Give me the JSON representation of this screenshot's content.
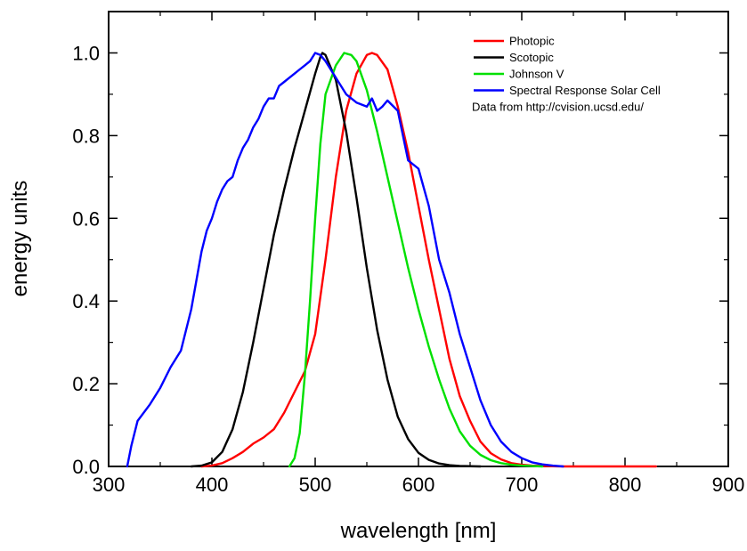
{
  "chart_data": {
    "type": "line",
    "xlabel": "wavelength [nm]",
    "ylabel": "energy units",
    "xlim": [
      300,
      900
    ],
    "ylim": [
      0.0,
      1.1
    ],
    "xticks": [
      "300",
      "400",
      "500",
      "600",
      "700",
      "800",
      "900"
    ],
    "yticks": [
      "0.0",
      "0.2",
      "0.4",
      "0.6",
      "0.8",
      "1.0"
    ],
    "grid": false,
    "legend_position": "top-right",
    "legend_note": "Data from http://cvision.ucsd.edu/",
    "series": [
      {
        "name": "Photopic",
        "color": "#ff0000",
        "points": [
          [
            390,
            0
          ],
          [
            400,
            0.002
          ],
          [
            410,
            0.008
          ],
          [
            420,
            0.02
          ],
          [
            430,
            0.035
          ],
          [
            440,
            0.055
          ],
          [
            450,
            0.07
          ],
          [
            460,
            0.09
          ],
          [
            470,
            0.13
          ],
          [
            480,
            0.18
          ],
          [
            490,
            0.23
          ],
          [
            500,
            0.32
          ],
          [
            510,
            0.5
          ],
          [
            520,
            0.7
          ],
          [
            530,
            0.86
          ],
          [
            540,
            0.95
          ],
          [
            550,
            0.995
          ],
          [
            555,
            1.0
          ],
          [
            560,
            0.995
          ],
          [
            570,
            0.96
          ],
          [
            580,
            0.87
          ],
          [
            590,
            0.76
          ],
          [
            600,
            0.63
          ],
          [
            610,
            0.5
          ],
          [
            620,
            0.38
          ],
          [
            630,
            0.26
          ],
          [
            640,
            0.17
          ],
          [
            650,
            0.11
          ],
          [
            660,
            0.06
          ],
          [
            670,
            0.032
          ],
          [
            680,
            0.017
          ],
          [
            690,
            0.008
          ],
          [
            700,
            0.004
          ],
          [
            710,
            0.002
          ],
          [
            720,
            0.001
          ],
          [
            740,
            0
          ],
          [
            830,
            0
          ]
        ]
      },
      {
        "name": "Scotopic",
        "color": "#000000",
        "points": [
          [
            380,
            0
          ],
          [
            390,
            0.002
          ],
          [
            400,
            0.01
          ],
          [
            410,
            0.035
          ],
          [
            420,
            0.09
          ],
          [
            430,
            0.18
          ],
          [
            440,
            0.3
          ],
          [
            450,
            0.43
          ],
          [
            460,
            0.56
          ],
          [
            470,
            0.67
          ],
          [
            480,
            0.77
          ],
          [
            490,
            0.86
          ],
          [
            500,
            0.95
          ],
          [
            505,
            0.99
          ],
          [
            507,
            1.0
          ],
          [
            510,
            0.995
          ],
          [
            520,
            0.935
          ],
          [
            530,
            0.81
          ],
          [
            540,
            0.65
          ],
          [
            550,
            0.48
          ],
          [
            560,
            0.33
          ],
          [
            570,
            0.21
          ],
          [
            580,
            0.12
          ],
          [
            590,
            0.066
          ],
          [
            600,
            0.033
          ],
          [
            610,
            0.016
          ],
          [
            620,
            0.007
          ],
          [
            630,
            0.003
          ],
          [
            640,
            0.001
          ],
          [
            660,
            0
          ]
        ]
      },
      {
        "name": "Johnson V",
        "color": "#00e000",
        "points": [
          [
            475,
            0
          ],
          [
            480,
            0.02
          ],
          [
            485,
            0.08
          ],
          [
            490,
            0.22
          ],
          [
            495,
            0.4
          ],
          [
            500,
            0.6
          ],
          [
            505,
            0.78
          ],
          [
            510,
            0.9
          ],
          [
            520,
            0.97
          ],
          [
            528,
            1.0
          ],
          [
            535,
            0.995
          ],
          [
            540,
            0.98
          ],
          [
            550,
            0.91
          ],
          [
            560,
            0.81
          ],
          [
            570,
            0.7
          ],
          [
            580,
            0.59
          ],
          [
            590,
            0.48
          ],
          [
            600,
            0.38
          ],
          [
            610,
            0.29
          ],
          [
            620,
            0.21
          ],
          [
            630,
            0.14
          ],
          [
            640,
            0.085
          ],
          [
            650,
            0.05
          ],
          [
            660,
            0.028
          ],
          [
            670,
            0.015
          ],
          [
            680,
            0.008
          ],
          [
            690,
            0.004
          ],
          [
            700,
            0.002
          ],
          [
            720,
            0
          ]
        ]
      },
      {
        "name": "Spectral Response Solar Cell",
        "color": "#0000ff",
        "points": [
          [
            318,
            0
          ],
          [
            322,
            0.05
          ],
          [
            328,
            0.11
          ],
          [
            340,
            0.15
          ],
          [
            350,
            0.19
          ],
          [
            360,
            0.24
          ],
          [
            370,
            0.28
          ],
          [
            380,
            0.38
          ],
          [
            385,
            0.45
          ],
          [
            390,
            0.52
          ],
          [
            395,
            0.57
          ],
          [
            400,
            0.6
          ],
          [
            405,
            0.64
          ],
          [
            410,
            0.67
          ],
          [
            415,
            0.69
          ],
          [
            420,
            0.7
          ],
          [
            425,
            0.74
          ],
          [
            430,
            0.77
          ],
          [
            435,
            0.79
          ],
          [
            440,
            0.82
          ],
          [
            445,
            0.84
          ],
          [
            450,
            0.87
          ],
          [
            455,
            0.89
          ],
          [
            460,
            0.89
          ],
          [
            465,
            0.92
          ],
          [
            470,
            0.93
          ],
          [
            475,
            0.94
          ],
          [
            480,
            0.95
          ],
          [
            485,
            0.96
          ],
          [
            490,
            0.97
          ],
          [
            495,
            0.98
          ],
          [
            500,
            1.0
          ],
          [
            505,
            0.995
          ],
          [
            510,
            0.98
          ],
          [
            520,
            0.94
          ],
          [
            530,
            0.9
          ],
          [
            540,
            0.88
          ],
          [
            550,
            0.87
          ],
          [
            555,
            0.89
          ],
          [
            560,
            0.86
          ],
          [
            565,
            0.87
          ],
          [
            570,
            0.885
          ],
          [
            580,
            0.86
          ],
          [
            585,
            0.8
          ],
          [
            590,
            0.74
          ],
          [
            600,
            0.72
          ],
          [
            610,
            0.63
          ],
          [
            620,
            0.5
          ],
          [
            630,
            0.42
          ],
          [
            640,
            0.32
          ],
          [
            650,
            0.24
          ],
          [
            660,
            0.16
          ],
          [
            670,
            0.1
          ],
          [
            680,
            0.06
          ],
          [
            690,
            0.035
          ],
          [
            700,
            0.02
          ],
          [
            710,
            0.01
          ],
          [
            720,
            0.005
          ],
          [
            730,
            0.002
          ],
          [
            740,
            0
          ]
        ]
      }
    ]
  }
}
